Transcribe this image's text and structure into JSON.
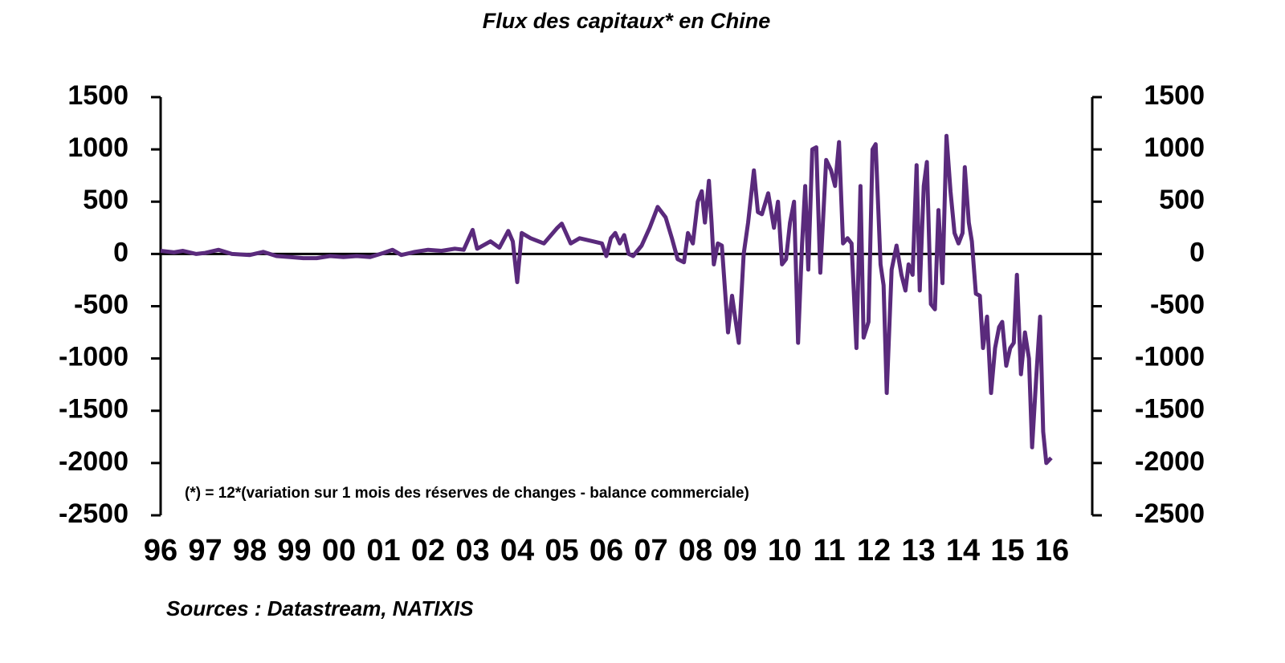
{
  "chart_data": {
    "type": "line",
    "title": "Flux des capitaux* en Chine",
    "annotation": "(*) = 12*(variation sur 1 mois des réserves de changes - balance commerciale)",
    "source": "Sources : Datastream, NATIXIS",
    "color": "#5a2a7c",
    "xlim": [
      1996,
      2016.9
    ],
    "xticks": [
      {
        "value": 1996,
        "label": "96"
      },
      {
        "value": 1997,
        "label": "97"
      },
      {
        "value": 1998,
        "label": "98"
      },
      {
        "value": 1999,
        "label": "99"
      },
      {
        "value": 2000,
        "label": "00"
      },
      {
        "value": 2001,
        "label": "01"
      },
      {
        "value": 2002,
        "label": "02"
      },
      {
        "value": 2003,
        "label": "03"
      },
      {
        "value": 2004,
        "label": "04"
      },
      {
        "value": 2005,
        "label": "05"
      },
      {
        "value": 2006,
        "label": "06"
      },
      {
        "value": 2007,
        "label": "07"
      },
      {
        "value": 2008,
        "label": "08"
      },
      {
        "value": 2009,
        "label": "09"
      },
      {
        "value": 2010,
        "label": "10"
      },
      {
        "value": 2011,
        "label": "11"
      },
      {
        "value": 2012,
        "label": "12"
      },
      {
        "value": 2013,
        "label": "13"
      },
      {
        "value": 2014,
        "label": "14"
      },
      {
        "value": 2015,
        "label": "15"
      },
      {
        "value": 2016,
        "label": "16"
      }
    ],
    "ylim": [
      -2500,
      1500
    ],
    "yticks": [
      1500,
      1000,
      500,
      0,
      -500,
      -1000,
      -1500,
      -2000,
      -2500
    ],
    "y2lim": [
      -2500,
      1500
    ],
    "y2ticks": [
      1500,
      1000,
      500,
      0,
      -500,
      -1000,
      -1500,
      -2000,
      -2500
    ],
    "x": [
      1996.0,
      1996.3,
      1996.5,
      1996.8,
      1997.0,
      1997.3,
      1997.6,
      1998.0,
      1998.3,
      1998.6,
      1998.9,
      1999.2,
      1999.5,
      1999.8,
      2000.1,
      2000.4,
      2000.7,
      2001.0,
      2001.2,
      2001.4,
      2001.7,
      2002.0,
      2002.3,
      2002.6,
      2002.8,
      2003.0,
      2003.1,
      2003.4,
      2003.6,
      2003.8,
      2003.9,
      2004.0,
      2004.1,
      2004.3,
      2004.6,
      2004.9,
      2005.0,
      2005.2,
      2005.4,
      2005.7,
      2005.9,
      2006.0,
      2006.1,
      2006.2,
      2006.3,
      2006.4,
      2006.5,
      2006.6,
      2006.79,
      2006.97,
      2007.15,
      2007.33,
      2007.47,
      2007.6,
      2007.74,
      2007.83,
      2007.94,
      2008.05,
      2008.14,
      2008.21,
      2008.3,
      2008.36,
      2008.41,
      2008.5,
      2008.59,
      2008.73,
      2008.82,
      2008.97,
      2009.08,
      2009.18,
      2009.31,
      2009.4,
      2009.49,
      2009.63,
      2009.76,
      2009.85,
      2009.94,
      2010.03,
      2010.12,
      2010.21,
      2010.3,
      2010.39,
      2010.46,
      2010.53,
      2010.62,
      2010.71,
      2010.8,
      2010.93,
      2011.04,
      2011.13,
      2011.22,
      2011.31,
      2011.41,
      2011.5,
      2011.61,
      2011.7,
      2011.77,
      2011.88,
      2011.97,
      2012.04,
      2012.15,
      2012.22,
      2012.29,
      2012.4,
      2012.51,
      2012.62,
      2012.71,
      2012.78,
      2012.87,
      2012.96,
      2013.03,
      2013.12,
      2013.19,
      2013.28,
      2013.37,
      2013.45,
      2013.54,
      2013.63,
      2013.72,
      2013.81,
      2013.9,
      2013.99,
      2014.04,
      2014.13,
      2014.2,
      2014.29,
      2014.38,
      2014.45,
      2014.54,
      2014.63,
      2014.72,
      2014.81,
      2014.88,
      2014.97,
      2015.06,
      2015.14,
      2015.21,
      2015.3,
      2015.39,
      2015.48,
      2015.55,
      2015.64,
      2015.73,
      2015.8,
      2015.87,
      2015.98
    ],
    "values": [
      30,
      15,
      30,
      0,
      10,
      40,
      0,
      -10,
      20,
      -20,
      -30,
      -40,
      -40,
      -20,
      -30,
      -20,
      -30,
      10,
      40,
      -10,
      20,
      40,
      30,
      50,
      40,
      230,
      50,
      120,
      60,
      220,
      120,
      -270,
      200,
      150,
      100,
      250,
      290,
      100,
      150,
      120,
      100,
      -20,
      150,
      200,
      100,
      180,
      0,
      -20,
      80,
      250,
      450,
      350,
      150,
      -50,
      -80,
      200,
      100,
      500,
      600,
      300,
      700,
      300,
      -100,
      100,
      80,
      -750,
      -400,
      -850,
      0,
      300,
      800,
      400,
      380,
      580,
      250,
      500,
      -100,
      -50,
      300,
      500,
      -850,
      100,
      650,
      -150,
      1000,
      1020,
      -180,
      900,
      800,
      650,
      1070,
      100,
      150,
      100,
      -900,
      650,
      -800,
      -650,
      1000,
      1050,
      -100,
      -300,
      -1330,
      -150,
      80,
      -200,
      -350,
      -100,
      -200,
      850,
      -350,
      650,
      880,
      -480,
      -530,
      420,
      -280,
      1130,
      600,
      200,
      100,
      200,
      830,
      300,
      120,
      -380,
      -400,
      -900,
      -600,
      -1330,
      -900,
      -700,
      -650,
      -1070,
      -900,
      -850,
      -200,
      -1150,
      -750,
      -1000,
      -1850,
      -1200,
      -600,
      -1700,
      -2000,
      -1950
    ]
  }
}
